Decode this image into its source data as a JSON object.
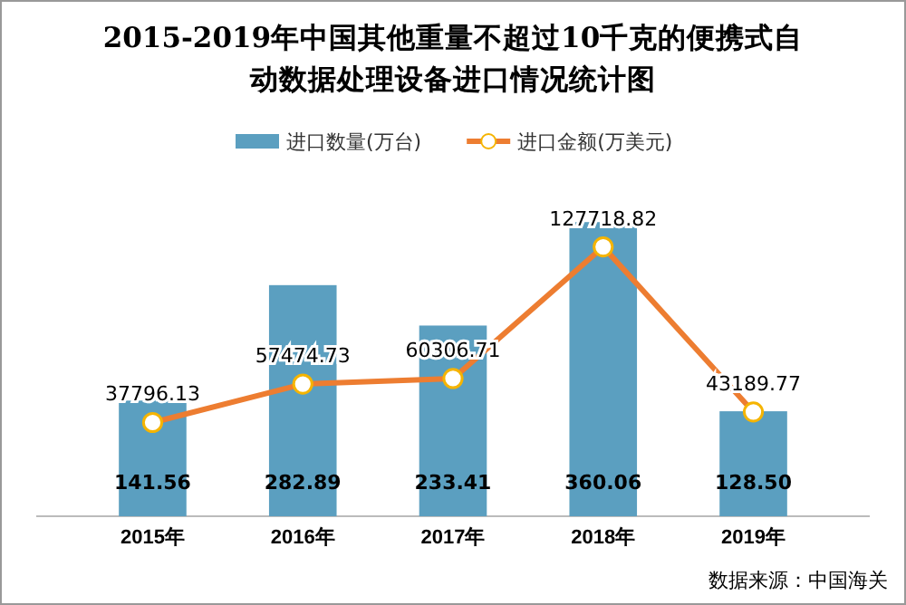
{
  "chart_data": {
    "type": "bar",
    "title": "2015-2019年中国其他重量不超过10千克的便携式自动数据处理设备进口情况统计图",
    "categories": [
      "2015年",
      "2016年",
      "2017年",
      "2018年",
      "2019年"
    ],
    "series": [
      {
        "name": "进口数量(万台)",
        "color": "#5b9fc0",
        "values": [
          141.56,
          282.89,
          233.41,
          360.06,
          128.5
        ],
        "value_labels": [
          "141.56",
          "282.89",
          "233.41",
          "360.06",
          "128.50"
        ]
      },
      {
        "name": "进口金额(万美元)",
        "type": "line",
        "axis": "y2",
        "color": "#ed7d31",
        "values": [
          37796.13,
          57474.73,
          60306.71,
          127718.82,
          43189.77
        ]
      }
    ],
    "tick_labels": "x",
    "data_labels": true,
    "legend": "top",
    "marker": "circle",
    "grid": false,
    "annotations": [
      "数据来源：中国海关"
    ]
  }
}
